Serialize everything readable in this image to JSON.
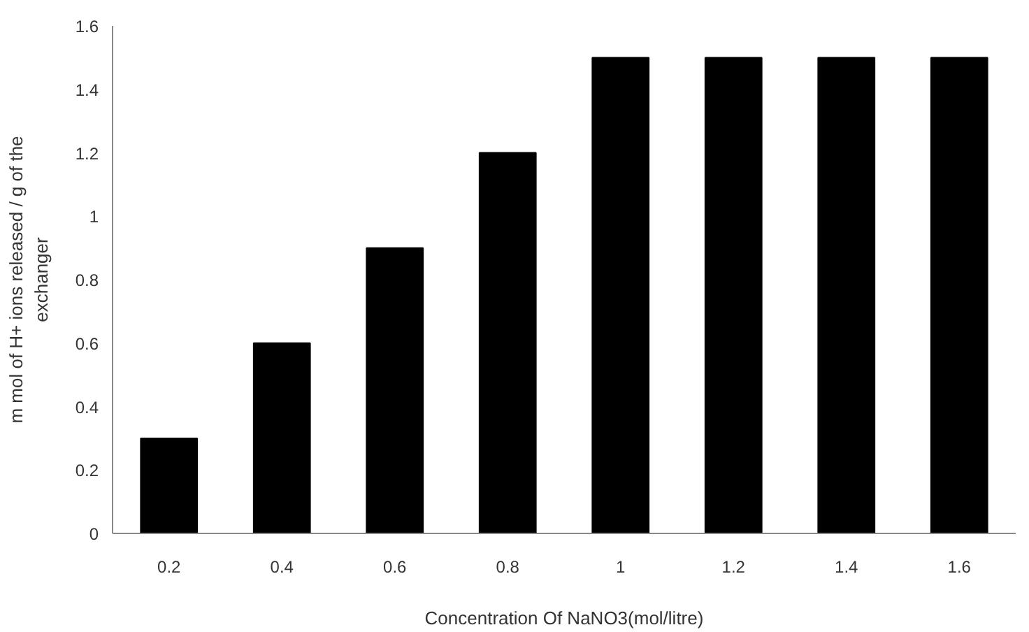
{
  "chart_data": {
    "type": "bar",
    "xlabel": "Concentration Of NaNO3(mol/litre)",
    "ylabel": "m mol of H+ ions released / g of the exchanger",
    "categories": [
      "0.2",
      "0.4",
      "0.6",
      "0.8",
      "1",
      "1.2",
      "1.4",
      "1.6"
    ],
    "values": [
      0.3,
      0.6,
      0.9,
      1.2,
      1.5,
      1.5,
      1.5,
      1.5
    ],
    "color": "#000000",
    "ylim": [
      0,
      1.6
    ],
    "yticks": [
      0,
      0.2,
      0.4,
      0.6,
      0.8,
      1,
      1.2,
      1.4,
      1.6
    ],
    "grid": false
  }
}
